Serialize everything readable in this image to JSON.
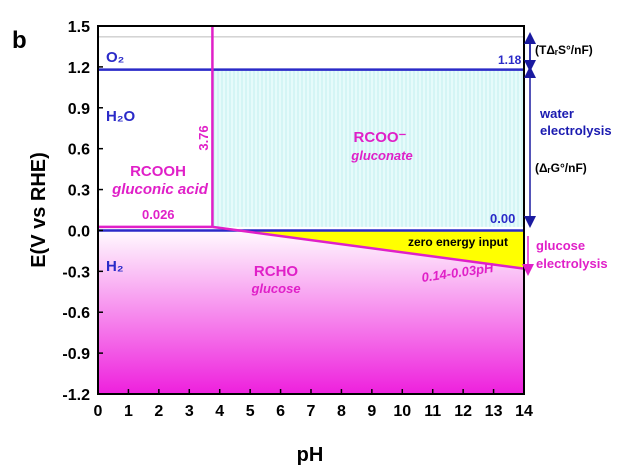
{
  "chart_data": {
    "type": "line",
    "panel_label": "b",
    "xlabel": "pH",
    "ylabel": "E(V vs RHE)",
    "xlim": [
      0,
      14
    ],
    "ylim": [
      -1.2,
      1.5
    ],
    "xticks": [
      0,
      1,
      2,
      3,
      4,
      5,
      6,
      7,
      8,
      9,
      10,
      11,
      12,
      13,
      14
    ],
    "yticks": [
      -1.2,
      -0.9,
      -0.6,
      -0.3,
      0.0,
      0.3,
      0.6,
      0.9,
      1.2,
      1.5
    ],
    "ytick_labels": [
      "-1.2",
      "-0.9",
      "-0.6",
      "-0.3",
      "0.0",
      "0.3",
      "0.6",
      "0.9",
      "1.2",
      "1.5"
    ],
    "grid": false,
    "lines": [
      {
        "kind": "O2/H2O",
        "x": [
          0,
          14
        ],
        "y": [
          1.18,
          1.18
        ],
        "color": "#2a2ac8"
      },
      {
        "kind": "H2O/H2",
        "x": [
          0,
          14
        ],
        "y": [
          0.0,
          0.0
        ],
        "color": "#2a2ac8"
      },
      {
        "kind": "gluconic boundary",
        "x": [
          0,
          3.76
        ],
        "y": [
          0.026,
          0.026
        ],
        "color": "#e020c8"
      },
      {
        "kind": "pKa",
        "x": [
          3.76,
          3.76
        ],
        "y": [
          0.026,
          1.5
        ],
        "color": "#e020c8"
      },
      {
        "kind": "glucose line",
        "x": [
          3.76,
          14
        ],
        "y": [
          0.026,
          -0.28
        ],
        "color": "#e020c8"
      },
      {
        "kind": "reference",
        "x": [
          0,
          14
        ],
        "y": [
          1.42,
          1.42
        ],
        "color": "#bbbbbb"
      }
    ],
    "regions": {
      "water": {
        "color": "#e6fbfb"
      },
      "zero_energy": {
        "color": "#ffff00"
      },
      "glucose": {
        "top_color": "#ffffff",
        "bottom_color": "#ee20dd"
      }
    },
    "annotations": {
      "o2": "O₂",
      "h2o": "H₂O",
      "h2": "H₂",
      "rcooh": "RCOOH",
      "gluconic_acid": "gluconic acid",
      "rcoo": "RCOO⁻",
      "gluconate": "gluconate",
      "rcho": "RCHO",
      "glucose": "glucose",
      "zero_energy": "zero energy input",
      "slope_eq": "0.14-0.03pH",
      "val_118": "1.18",
      "val_000": "0.00",
      "val_0026": "0.026",
      "val_376": "3.76",
      "tds": "(TΔᵣS°/nF)",
      "dg": "(ΔᵣG°/nF)",
      "water_1": "water",
      "water_2": "electrolysis",
      "glucose_1": "glucose",
      "glucose_2": "electrolysis"
    },
    "colors": {
      "blue": "#2a2ac8",
      "magenta": "#e020c8",
      "navy": "#1a1ab0",
      "arrow_blue": "#1a1aa0"
    }
  }
}
